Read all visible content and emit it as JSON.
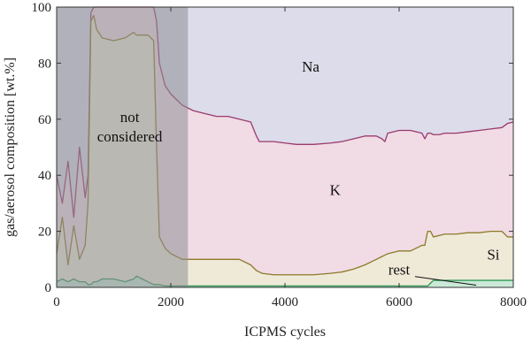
{
  "chart_data": {
    "type": "area",
    "title": "",
    "xlabel": "ICPMS cycles",
    "ylabel": "gas/aerosol composition [wt.%]",
    "xlim": [
      0,
      8000
    ],
    "ylim": [
      0,
      100
    ],
    "x_ticks": [
      0,
      2000,
      4000,
      6000,
      8000
    ],
    "y_ticks": [
      0,
      20,
      40,
      60,
      80,
      100
    ],
    "grid": false,
    "legend": "none",
    "stacking": "cumulative",
    "colors": {
      "Na": "#dcdcea",
      "K": "#f1dbe5",
      "Si": "#efead8",
      "rest": "#cbe9d8",
      "K_line": "#9b3a6e",
      "Si_line": "#8c7a2a",
      "rest_line": "#2e9a55",
      "excluded": "#8e8e94"
    },
    "x": [
      0,
      100,
      200,
      300,
      400,
      500,
      550,
      600,
      650,
      700,
      800,
      1000,
      1200,
      1350,
      1400,
      1500,
      1600,
      1700,
      1750,
      1800,
      1900,
      2000,
      2100,
      2200,
      2300,
      2400,
      2600,
      2800,
      3000,
      3200,
      3400,
      3500,
      3550,
      3600,
      3800,
      4000,
      4200,
      4500,
      4800,
      5000,
      5200,
      5400,
      5600,
      5700,
      5750,
      5800,
      6000,
      6200,
      6400,
      6450,
      6500,
      6550,
      6600,
      6700,
      6800,
      7000,
      7200,
      7400,
      7600,
      7800,
      7900,
      8000
    ],
    "series": [
      {
        "name": "rest",
        "cumulative": [
          2,
          3,
          2,
          3,
          2,
          2,
          1,
          1,
          2,
          2,
          3,
          3,
          2,
          3,
          4,
          3,
          2,
          1,
          1,
          1,
          0.5,
          0.5,
          0.5,
          0.5,
          0.5,
          0.5,
          0.5,
          0.5,
          0.5,
          0.5,
          0.5,
          0.5,
          0.5,
          0.5,
          0.5,
          0.5,
          0.5,
          0.5,
          0.5,
          0.5,
          0.5,
          0.5,
          0.5,
          0.5,
          0.5,
          0.5,
          0.5,
          0.5,
          0.5,
          0.5,
          0.5,
          1.5,
          2.5,
          2.5,
          2.5,
          2.5,
          2.5,
          2.5,
          2.5,
          2.5,
          2.5,
          2.5
        ]
      },
      {
        "name": "Si",
        "cumulative": [
          12,
          25,
          8,
          22,
          10,
          15,
          30,
          95,
          97,
          92,
          89,
          88,
          89,
          91,
          90,
          90,
          90,
          88,
          50,
          18,
          14,
          12,
          11,
          10,
          10,
          10,
          10,
          10,
          10,
          10,
          8,
          6,
          5.5,
          5,
          4.5,
          4.5,
          4.5,
          4.5,
          5,
          5.5,
          6.5,
          8,
          10,
          11,
          11.5,
          12,
          13,
          13,
          15,
          15,
          20,
          20,
          18,
          18.5,
          19,
          19,
          19.5,
          19.5,
          20,
          20,
          18,
          18
        ]
      },
      {
        "name": "K",
        "cumulative": [
          40,
          30,
          45,
          25,
          50,
          32,
          40,
          98,
          100,
          100,
          100,
          100,
          100,
          100,
          100,
          100,
          100,
          100,
          95,
          80,
          72,
          69,
          67,
          65,
          64,
          63,
          62,
          61,
          61,
          60,
          59,
          54,
          52,
          52,
          52,
          51.5,
          51,
          51,
          51.5,
          52,
          53,
          54,
          54,
          53,
          52,
          55,
          56,
          56,
          55,
          53,
          55,
          55,
          54.5,
          54.5,
          55,
          55,
          55.5,
          56,
          56.5,
          57,
          58.5,
          59
        ]
      },
      {
        "name": "Na",
        "cumulative": [
          100,
          100,
          100,
          100,
          100,
          100,
          100,
          100,
          100,
          100,
          100,
          100,
          100,
          100,
          100,
          100,
          100,
          100,
          100,
          100,
          100,
          100,
          100,
          100,
          100,
          100,
          100,
          100,
          100,
          100,
          100,
          100,
          100,
          100,
          100,
          100,
          100,
          100,
          100,
          100,
          100,
          100,
          100,
          100,
          100,
          100,
          100,
          100,
          100,
          100,
          100,
          100,
          100,
          100,
          100,
          100,
          100,
          100,
          100,
          100,
          100,
          100
        ]
      }
    ],
    "excluded_range": [
      0,
      2300
    ],
    "annotations": [
      {
        "name": "Na",
        "text": "Na",
        "x": 4450,
        "y": 77
      },
      {
        "name": "K",
        "text": "K",
        "x": 4880,
        "y": 33
      },
      {
        "name": "Si",
        "text": "Si",
        "x": 7650,
        "y": 10
      },
      {
        "name": "rest",
        "text": "rest",
        "x": 6000,
        "y": 4.5,
        "pointer_to": [
          7350,
          0.8
        ]
      },
      {
        "name": "not-considered-line1",
        "text": "not",
        "x": 1280,
        "y": 59
      },
      {
        "name": "not-considered-line2",
        "text": "considered",
        "x": 1280,
        "y": 52
      }
    ]
  }
}
